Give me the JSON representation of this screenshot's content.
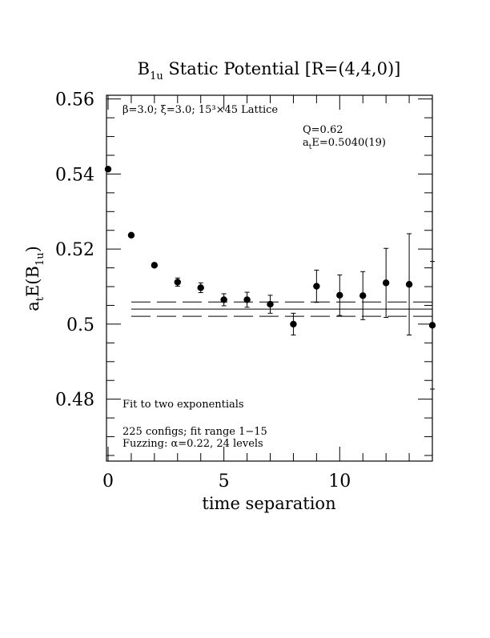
{
  "chart_data": {
    "type": "scatter",
    "title": {
      "prefix": "B",
      "subscript": "1u",
      "rest": " Static Potential [R=(4,4,0)]"
    },
    "xlabel": "time separation",
    "ylabel": {
      "prefix": "a",
      "sub1": "t",
      "middle": "E(B",
      "sub2": "1u",
      "suffix": ")"
    },
    "xlim": [
      0,
      14
    ],
    "ylim": [
      0.4635,
      0.561
    ],
    "x_ticks": [
      {
        "value": 0,
        "label": "0"
      },
      {
        "value": 5,
        "label": "5"
      },
      {
        "value": 10,
        "label": "10"
      }
    ],
    "y_ticks": [
      {
        "value": 0.48,
        "label": "0.48"
      },
      {
        "value": 0.5,
        "label": "0.5"
      },
      {
        "value": 0.52,
        "label": "0.52"
      },
      {
        "value": 0.54,
        "label": "0.54"
      },
      {
        "value": 0.56,
        "label": "0.56"
      }
    ],
    "points": [
      {
        "x": 0,
        "y": 0.5413,
        "err": 0
      },
      {
        "x": 1,
        "y": 0.5237,
        "err": 0
      },
      {
        "x": 2,
        "y": 0.5157,
        "err": 0.0004
      },
      {
        "x": 3,
        "y": 0.5112,
        "err": 0.0011
      },
      {
        "x": 4,
        "y": 0.5097,
        "err": 0.0013
      },
      {
        "x": 5,
        "y": 0.5065,
        "err": 0.0016
      },
      {
        "x": 6,
        "y": 0.5065,
        "err": 0.002
      },
      {
        "x": 7,
        "y": 0.5053,
        "err": 0.0024
      },
      {
        "x": 8,
        "y": 0.5,
        "err": 0.0029
      },
      {
        "x": 9,
        "y": 0.5101,
        "err": 0.0043
      },
      {
        "x": 10,
        "y": 0.5077,
        "err": 0.0054
      },
      {
        "x": 11,
        "y": 0.5076,
        "err": 0.0064
      },
      {
        "x": 12,
        "y": 0.511,
        "err": 0.0092
      },
      {
        "x": 13,
        "y": 0.5106,
        "err": 0.0135
      },
      {
        "x": 14,
        "y": 0.4997,
        "err": 0.017
      }
    ],
    "fit": {
      "central": 0.504,
      "error": 0.0019,
      "x_range": [
        1,
        14
      ]
    },
    "annotations": {
      "lattice": "β=3.0; ξ=3.0; 15³×45 Lattice",
      "q": "Q=0.62",
      "energy": {
        "prefix": "a",
        "sub": "t",
        "rest": "E=0.5040(19)"
      },
      "fit_type": "Fit to two exponentials",
      "configs": "225 configs; fit range 1−15",
      "fuzzing": "Fuzzing: α=0.22, 24 levels"
    },
    "grid": false,
    "legend": "none"
  }
}
